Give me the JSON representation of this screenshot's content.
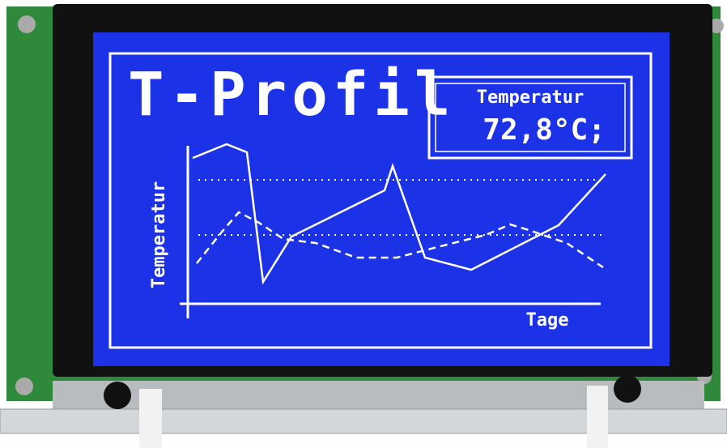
{
  "screen": {
    "title": "T-Profil",
    "readout": {
      "label": "Temperatur",
      "value": "72,8°C;"
    },
    "y_axis_label": "Temperatur",
    "x_axis_label": "Tage"
  }
}
